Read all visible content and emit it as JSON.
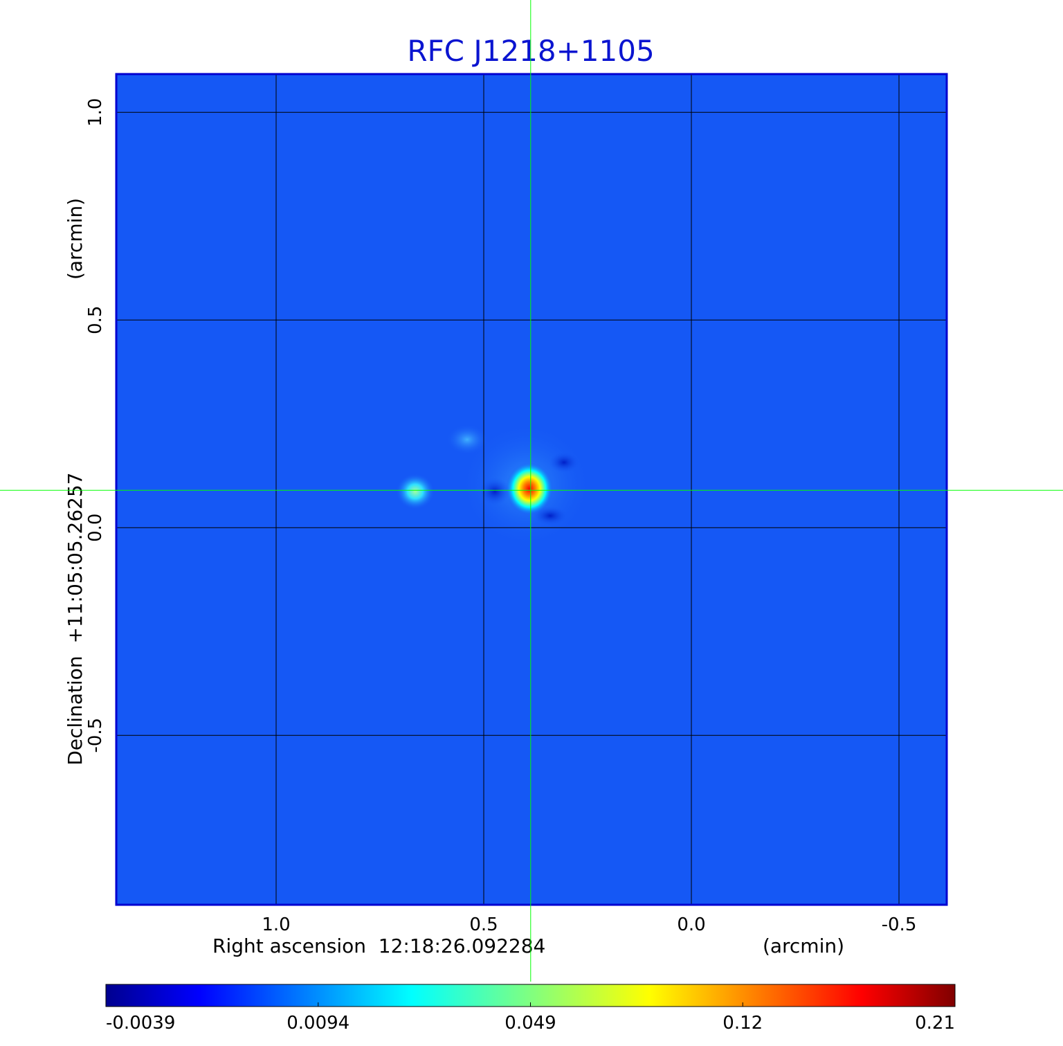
{
  "chart_data": {
    "type": "image",
    "title": "RFC J1218+1105",
    "x_label": "Right ascension  12:18:26.092284",
    "x_unit": "(arcmin)",
    "y_label": "Declination  +11:05:05.26257",
    "y_unit": "(arcmin)",
    "xlim": [
      1.385,
      -0.615
    ],
    "ylim": [
      -0.908,
      1.092
    ],
    "xticks": [
      {
        "value": 1,
        "label": "1.0"
      },
      0.5,
      {
        "value": 0,
        "label": "0.0"
      },
      -0.5
    ],
    "yticks": [
      -0.5,
      {
        "value": 0,
        "label": "0.0"
      },
      0.5,
      {
        "value": 1,
        "label": "1.0"
      }
    ],
    "grid": true,
    "crosshair": {
      "x": 0.387,
      "y": 0.09,
      "color": "#00ff00"
    },
    "colorbar": {
      "colormap": "jet",
      "ticks": [
        -0.0039,
        0.0094,
        0.049,
        0.12,
        0.21
      ]
    }
  }
}
